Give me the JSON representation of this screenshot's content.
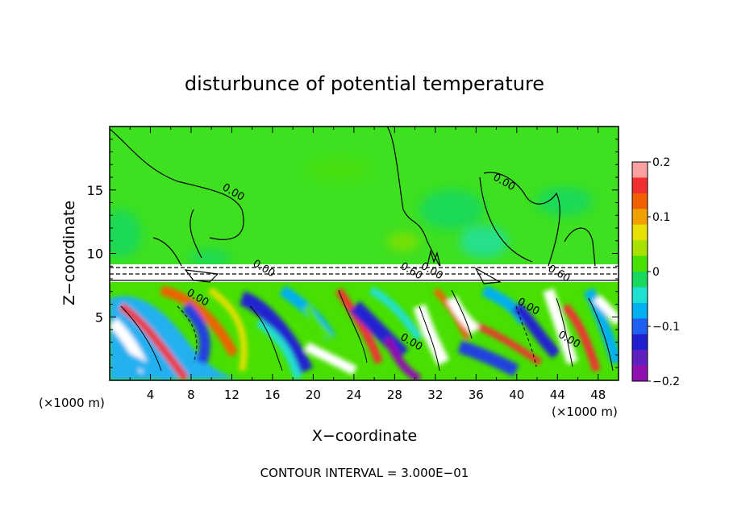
{
  "chart_data": {
    "type": "heatmap",
    "title": "disturbunce of potential temperature",
    "xlabel": "X−coordinate",
    "ylabel": "Z−coordinate",
    "x_unit_left": "(×1000 m)",
    "x_unit_right": "(×1000 m)",
    "footer": "CONTOUR INTERVAL = 3.000E−01",
    "xlim": [
      0,
      50
    ],
    "ylim": [
      0,
      20
    ],
    "x_ticks": [
      "4",
      "8",
      "12",
      "16",
      "20",
      "24",
      "28",
      "32",
      "36",
      "40",
      "44",
      "48"
    ],
    "y_ticks": [
      "5",
      "10",
      "15"
    ],
    "colorbar": {
      "range": [
        -0.2,
        0.2
      ],
      "tick_labels": [
        "0.2",
        "0.1",
        "0",
        "−0.1",
        "−0.2"
      ],
      "colors": [
        "#f9a0a0",
        "#f03030",
        "#f06000",
        "#f0a000",
        "#e8e000",
        "#a8e000",
        "#48e000",
        "#18d860",
        "#20e0d0",
        "#00b0f0",
        "#2060f0",
        "#2020d0",
        "#6020c0",
        "#9010b0"
      ]
    },
    "contour_labels": [
      {
        "text": "0.00",
        "x": 12.0,
        "z": 14.6
      },
      {
        "text": "0.00",
        "x": 38.6,
        "z": 15.4
      },
      {
        "text": "0.00",
        "x": 15.0,
        "z": 8.6
      },
      {
        "text": "0.60",
        "x": 29.5,
        "z": 8.4
      },
      {
        "text": "0.00",
        "x": 31.5,
        "z": 8.4
      },
      {
        "text": "0.60",
        "x": 44.0,
        "z": 8.2
      },
      {
        "text": "0.00",
        "x": 8.5,
        "z": 6.3
      },
      {
        "text": "0.00",
        "x": 41.0,
        "z": 5.6
      },
      {
        "text": "0.00",
        "x": 29.5,
        "z": 2.8
      },
      {
        "text": "0.00",
        "x": 45.0,
        "z": 3.0
      }
    ],
    "fields": {
      "upper_background": 0.0,
      "inversion_layer_z": [
        7.9,
        9.3
      ],
      "lower_turbulent_z": [
        0,
        7.8
      ]
    }
  }
}
